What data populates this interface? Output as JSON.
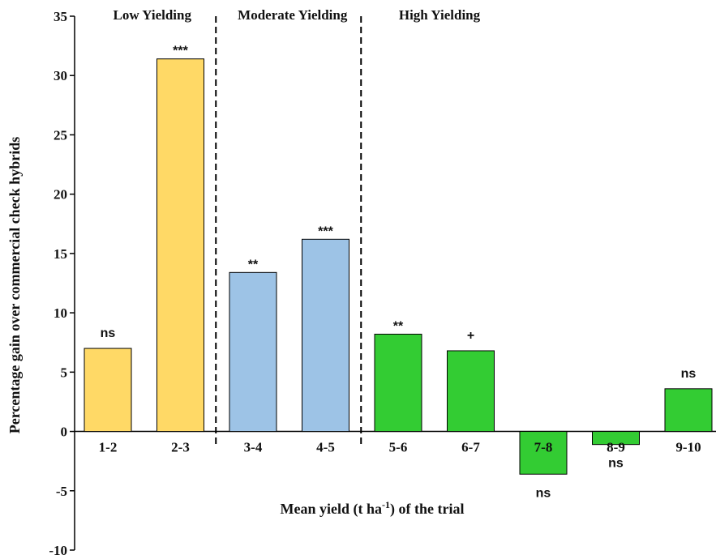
{
  "chart_data": {
    "type": "bar",
    "ylabel": "Percentage gain over commercial  check hybrids",
    "xlabel": {
      "main": "Mean yield (t ha",
      "sup": "-1",
      "tail": ") of the trial"
    },
    "ylim": [
      -10,
      35
    ],
    "yticks": [
      -10,
      -5,
      0,
      5,
      10,
      15,
      20,
      25,
      30,
      35
    ],
    "grid": false,
    "groups": [
      {
        "label": "Low Yielding",
        "from": 0,
        "to": 1,
        "color": "#FFD966"
      },
      {
        "label": "Moderate Yielding",
        "from": 2,
        "to": 3,
        "color": "#9DC3E6"
      },
      {
        "label": "High Yielding",
        "from": 4,
        "to": 8,
        "color": "#33CC33"
      }
    ],
    "categories": [
      "1-2",
      "2-3",
      "3-4",
      "4-5",
      "5-6",
      "6-7",
      "7-8",
      "8-9",
      "9-10"
    ],
    "values": [
      7.0,
      31.4,
      13.4,
      16.2,
      8.2,
      6.8,
      -3.6,
      -1.1,
      3.6
    ],
    "significance": [
      "ns",
      "***",
      "**",
      "***",
      "**",
      "+",
      "ns",
      "ns",
      "ns"
    ]
  }
}
